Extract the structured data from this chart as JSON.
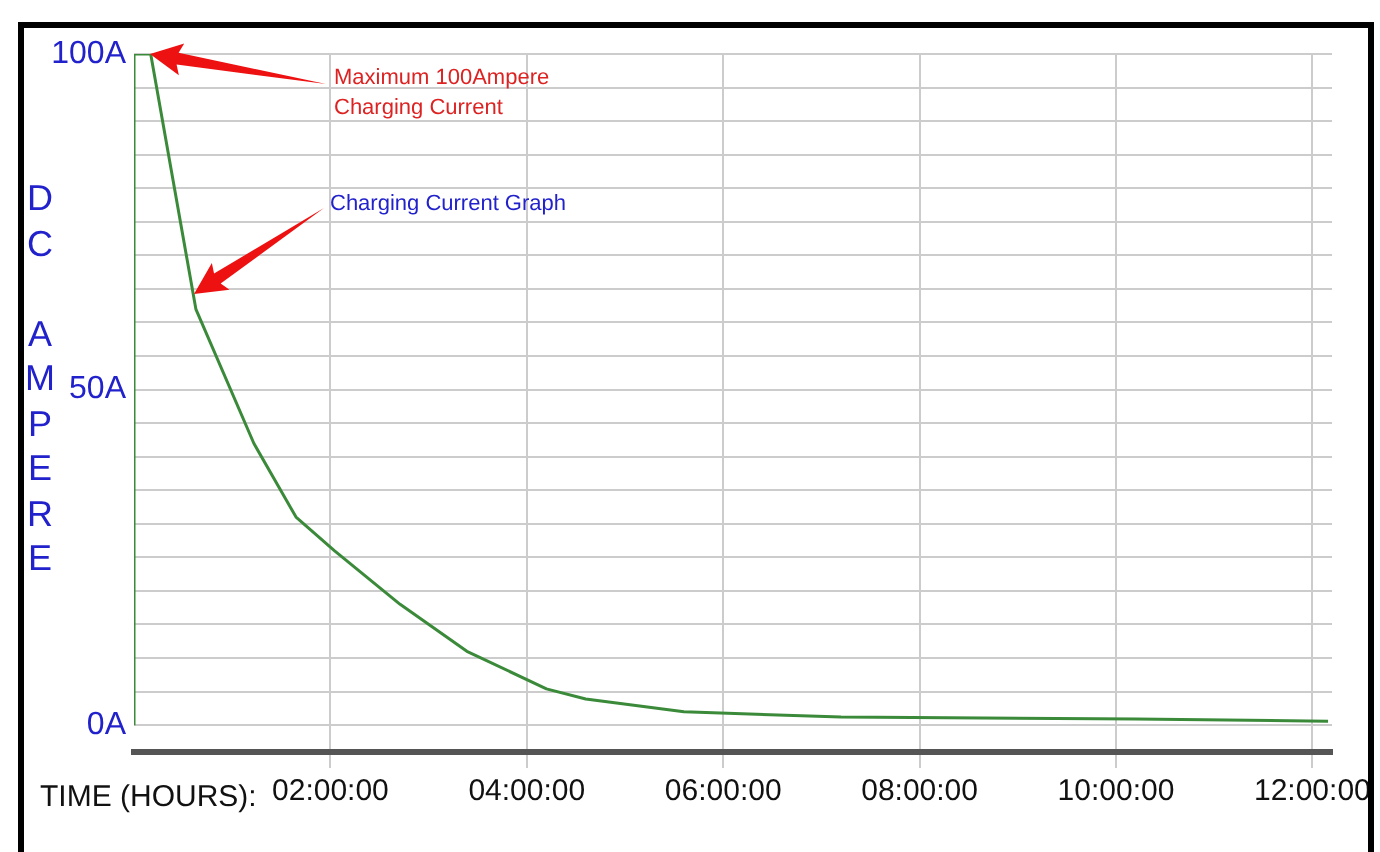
{
  "chart_data": {
    "type": "line",
    "xlabel": "TIME (HOURS):",
    "ylabel": "DC AMPERE",
    "x": [
      0,
      0,
      0.17,
      0.63,
      1.22,
      1.65,
      2.04,
      2.71,
      3.39,
      4.2,
      4.6,
      5.6,
      7.2,
      10.2,
      12.16
    ],
    "values": [
      0,
      100,
      100,
      62,
      42,
      31,
      26,
      18,
      11,
      5.4,
      3.9,
      2,
      1.2,
      0.9,
      0.6
    ],
    "color": "#3a8a3a",
    "marker": "none",
    "line_style": "solid",
    "grid": true,
    "legend": false,
    "xlim": [
      0,
      12.2
    ],
    "xticks": [
      {
        "value": 2,
        "label": "02:00:00"
      },
      {
        "value": 4,
        "label": "04:00:00"
      },
      {
        "value": 6,
        "label": "06:00:00"
      },
      {
        "value": 8,
        "label": "08:00:00"
      },
      {
        "value": 10,
        "label": "10:00:00"
      },
      {
        "value": 12,
        "label": "12:00:00"
      }
    ],
    "ylim": [
      -4,
      100
    ],
    "yticks": [
      {
        "value": 0,
        "label": "0A"
      },
      {
        "value": 5,
        "label": null
      },
      {
        "value": 10,
        "label": null
      },
      {
        "value": 15,
        "label": null
      },
      {
        "value": 20,
        "label": null
      },
      {
        "value": 25,
        "label": null
      },
      {
        "value": 30,
        "label": null
      },
      {
        "value": 35,
        "label": null
      },
      {
        "value": 40,
        "label": null
      },
      {
        "value": 45,
        "label": null
      },
      {
        "value": 50,
        "label": "50A"
      },
      {
        "value": 55,
        "label": null
      },
      {
        "value": 60,
        "label": null
      },
      {
        "value": 65,
        "label": null
      },
      {
        "value": 70,
        "label": null
      },
      {
        "value": 75,
        "label": null
      },
      {
        "value": 80,
        "label": null
      },
      {
        "value": 85,
        "label": null
      },
      {
        "value": 90,
        "label": null
      },
      {
        "value": 95,
        "label": null
      },
      {
        "value": 100,
        "label": "100A"
      }
    ],
    "annotations": [
      "Maximum 100Ampere\nCharging Current",
      "Charging Current Graph"
    ]
  }
}
